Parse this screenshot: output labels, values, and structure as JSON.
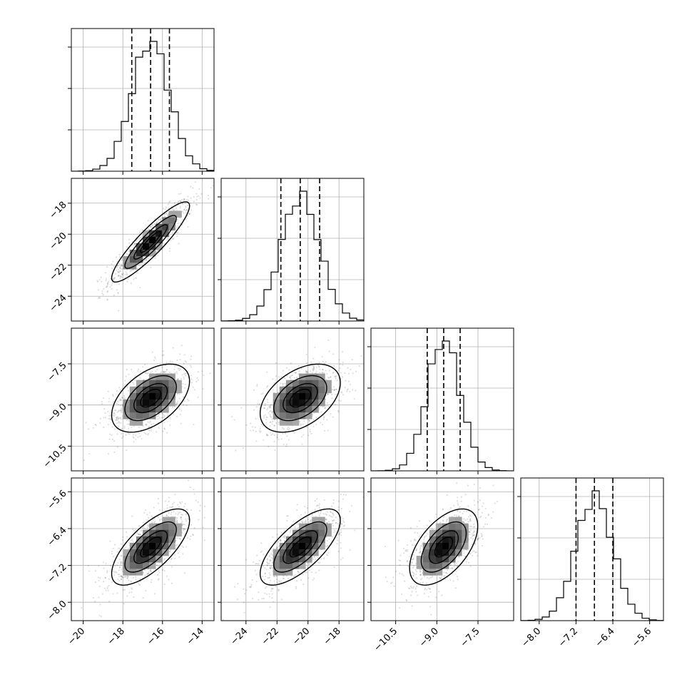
{
  "chart_data": {
    "type": "corner",
    "parameters": [
      {
        "ticks": [
          -20,
          -18,
          -16,
          -14
        ],
        "tick_labels": [
          "−20",
          "−18",
          "−16",
          "−14"
        ],
        "range": [
          -20.6,
          -13.4
        ],
        "mean": -16.6,
        "sd": 0.95,
        "quantiles": [
          -17.55,
          -16.6,
          -15.65
        ]
      },
      {
        "ticks": [
          -24,
          -22,
          -20,
          -18
        ],
        "tick_labels": [
          "−24",
          "−22",
          "−20",
          "−18"
        ],
        "range": [
          -25.6,
          -16.4
        ],
        "mean": -20.5,
        "sd": 1.25,
        "quantiles": [
          -21.75,
          -20.5,
          -19.25
        ]
      },
      {
        "ticks": [
          -10.5,
          -9.0,
          -7.5
        ],
        "tick_labels": [
          "−10.5",
          "−9.0",
          "−7.5"
        ],
        "range": [
          -11.4,
          -6.2
        ],
        "mean": -8.75,
        "sd": 0.6,
        "quantiles": [
          -9.35,
          -8.75,
          -8.15
        ]
      },
      {
        "ticks": [
          -8.0,
          -7.2,
          -6.4,
          -5.6
        ],
        "tick_labels": [
          "−8.0",
          "−7.2",
          "−6.4",
          "−5.6"
        ],
        "range": [
          -8.4,
          -5.3
        ],
        "mean": -6.8,
        "sd": 0.4,
        "quantiles": [
          -7.2,
          -6.8,
          -6.4
        ]
      }
    ],
    "correlations": [
      [
        1.0,
        0.9,
        0.5,
        0.7
      ],
      [
        0.9,
        1.0,
        0.45,
        0.7
      ],
      [
        0.5,
        0.45,
        1.0,
        0.55
      ],
      [
        0.7,
        0.7,
        0.55,
        1.0
      ]
    ],
    "histogram_bins": 20,
    "diagonal": "1-D histograms with dashed lines at the 16th, 50th and 84th percentiles",
    "off_diagonal": "2-D sample scatter with density shading and contour levels",
    "contour_levels_sigma": [
      0.5,
      1.0,
      1.5,
      2.0
    ],
    "grid": true,
    "colors": {
      "line": "#000000",
      "grid": "#b0b0b0",
      "points": "#000000",
      "density_dark": "#000000",
      "density_light": "#f2f2f2"
    }
  }
}
